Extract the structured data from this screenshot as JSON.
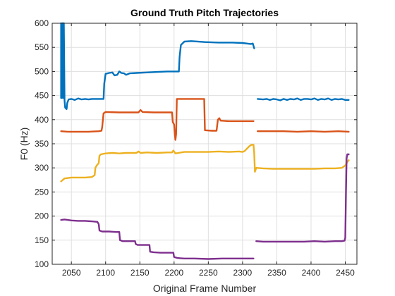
{
  "chart_data": {
    "type": "line",
    "title": "Ground Truth Pitch Trajectories",
    "xlabel": "Original Frame Number",
    "ylabel": "F0 (Hz)",
    "xlim": [
      2022,
      2467
    ],
    "ylim": [
      100,
      600
    ],
    "xticks": [
      2050,
      2100,
      2150,
      2200,
      2250,
      2300,
      2350,
      2400,
      2450
    ],
    "yticks": [
      100,
      150,
      200,
      250,
      300,
      350,
      400,
      450,
      500,
      550,
      600
    ],
    "grid": true,
    "series": [
      {
        "color": "#0072bd",
        "points": [
          [
            2035,
            445
          ],
          [
            2035,
            600
          ],
          [
            2036,
            445
          ],
          [
            2037,
            600
          ],
          [
            2038,
            445
          ],
          [
            2039,
            600
          ],
          [
            2040,
            440
          ],
          [
            2041,
            425
          ],
          [
            2043,
            422
          ],
          [
            2044,
            435
          ],
          [
            2046,
            442
          ],
          [
            2050,
            443
          ],
          [
            2055,
            441
          ],
          [
            2060,
            444
          ],
          [
            2065,
            442
          ],
          [
            2070,
            443
          ],
          [
            2075,
            442
          ],
          [
            2080,
            443
          ],
          [
            2085,
            443
          ],
          [
            2090,
            443
          ],
          [
            2095,
            443
          ],
          [
            2097,
            443
          ],
          [
            2098,
            475
          ],
          [
            2100,
            495
          ],
          [
            2105,
            497
          ],
          [
            2110,
            498
          ],
          [
            2113,
            492
          ],
          [
            2117,
            493
          ],
          [
            2120,
            500
          ],
          [
            2123,
            497
          ],
          [
            2127,
            496
          ],
          [
            2130,
            493
          ],
          [
            2135,
            496
          ],
          [
            2145,
            497
          ],
          [
            2160,
            498
          ],
          [
            2175,
            499
          ],
          [
            2190,
            500
          ],
          [
            2200,
            500
          ],
          [
            2207,
            500
          ],
          [
            2208,
            530
          ],
          [
            2210,
            555
          ],
          [
            2215,
            562
          ],
          [
            2225,
            563
          ],
          [
            2245,
            561
          ],
          [
            2265,
            560
          ],
          [
            2285,
            560
          ],
          [
            2300,
            559
          ],
          [
            2312,
            557
          ],
          [
            2315,
            558
          ],
          [
            2317,
            548
          ],
          null,
          [
            2322,
            443
          ],
          [
            2330,
            442
          ],
          [
            2335,
            443
          ],
          [
            2340,
            441
          ],
          [
            2345,
            443
          ],
          [
            2350,
            442
          ],
          [
            2355,
            440
          ],
          [
            2360,
            443
          ],
          [
            2365,
            441
          ],
          [
            2370,
            443
          ],
          [
            2375,
            442
          ],
          [
            2380,
            444
          ],
          [
            2385,
            441
          ],
          [
            2390,
            443
          ],
          [
            2395,
            443
          ],
          [
            2400,
            442
          ],
          [
            2405,
            444
          ],
          [
            2410,
            441
          ],
          [
            2415,
            443
          ],
          [
            2420,
            442
          ],
          [
            2425,
            444
          ],
          [
            2430,
            441
          ],
          [
            2435,
            443
          ],
          [
            2440,
            442
          ],
          [
            2445,
            443
          ],
          [
            2450,
            441
          ],
          [
            2455,
            441
          ]
        ]
      },
      {
        "color": "#d95319",
        "points": [
          [
            2035,
            376
          ],
          [
            2045,
            375
          ],
          [
            2060,
            375
          ],
          [
            2075,
            375
          ],
          [
            2090,
            376
          ],
          [
            2094,
            377
          ],
          [
            2095,
            385
          ],
          [
            2097,
            413
          ],
          [
            2100,
            416
          ],
          [
            2120,
            415
          ],
          [
            2140,
            415
          ],
          [
            2148,
            415
          ],
          [
            2151,
            420
          ],
          [
            2154,
            416
          ],
          [
            2170,
            415
          ],
          [
            2195,
            415
          ],
          [
            2197,
            415
          ],
          [
            2198,
            395
          ],
          [
            2200,
            390
          ],
          [
            2201,
            370
          ],
          [
            2202,
            358
          ],
          [
            2203,
            370
          ],
          [
            2204,
            443
          ],
          [
            2215,
            443
          ],
          [
            2230,
            443
          ],
          [
            2240,
            443
          ],
          [
            2244,
            443
          ],
          [
            2245,
            378
          ],
          [
            2255,
            377
          ],
          [
            2262,
            377
          ],
          [
            2264,
            400
          ],
          [
            2266,
            403
          ],
          [
            2268,
            398
          ],
          [
            2280,
            397
          ],
          [
            2300,
            397
          ],
          [
            2316,
            397
          ],
          null,
          [
            2322,
            376
          ],
          [
            2340,
            376
          ],
          [
            2360,
            376
          ],
          [
            2380,
            375
          ],
          [
            2400,
            376
          ],
          [
            2420,
            375
          ],
          [
            2440,
            376
          ],
          [
            2455,
            375
          ]
        ]
      },
      {
        "color": "#edb120",
        "points": [
          [
            2035,
            272
          ],
          [
            2040,
            278
          ],
          [
            2050,
            280
          ],
          [
            2060,
            280
          ],
          [
            2070,
            280
          ],
          [
            2080,
            281
          ],
          [
            2084,
            285
          ],
          [
            2085,
            300
          ],
          [
            2087,
            305
          ],
          [
            2090,
            310
          ],
          [
            2091,
            325
          ],
          [
            2093,
            328
          ],
          [
            2100,
            330
          ],
          [
            2110,
            331
          ],
          [
            2120,
            330
          ],
          [
            2130,
            331
          ],
          [
            2145,
            331
          ],
          [
            2148,
            334
          ],
          [
            2151,
            331
          ],
          [
            2160,
            332
          ],
          [
            2175,
            331
          ],
          [
            2190,
            332
          ],
          [
            2197,
            332
          ],
          [
            2199,
            336
          ],
          [
            2202,
            330
          ],
          [
            2215,
            333
          ],
          [
            2230,
            333
          ],
          [
            2250,
            333
          ],
          [
            2265,
            334
          ],
          [
            2280,
            333
          ],
          [
            2295,
            334
          ],
          [
            2300,
            333
          ],
          [
            2303,
            335
          ],
          [
            2310,
            345
          ],
          [
            2313,
            348
          ],
          [
            2316,
            348
          ],
          [
            2317,
            330
          ],
          [
            2318,
            292
          ],
          [
            2320,
            300
          ],
          [
            2330,
            299
          ],
          [
            2345,
            298
          ],
          [
            2360,
            298
          ],
          [
            2375,
            298
          ],
          [
            2390,
            298
          ],
          [
            2405,
            298
          ],
          [
            2420,
            299
          ],
          [
            2435,
            299
          ],
          [
            2445,
            300
          ],
          [
            2450,
            305
          ],
          [
            2453,
            312
          ],
          [
            2455,
            316
          ]
        ]
      },
      {
        "color": "#7e2f8e",
        "points": [
          [
            2035,
            192
          ],
          [
            2040,
            193
          ],
          [
            2050,
            191
          ],
          [
            2060,
            190
          ],
          [
            2070,
            190
          ],
          [
            2080,
            189
          ],
          [
            2088,
            188
          ],
          [
            2090,
            183
          ],
          [
            2091,
            170
          ],
          [
            2095,
            168
          ],
          [
            2105,
            168
          ],
          [
            2115,
            167
          ],
          [
            2120,
            167
          ],
          [
            2121,
            150
          ],
          [
            2125,
            148
          ],
          [
            2135,
            148
          ],
          [
            2143,
            148
          ],
          [
            2144,
            142
          ],
          [
            2147,
            140
          ],
          [
            2155,
            140
          ],
          [
            2164,
            140
          ],
          [
            2165,
            126
          ],
          [
            2170,
            125
          ],
          [
            2180,
            124
          ],
          [
            2190,
            124
          ],
          [
            2199,
            124
          ],
          [
            2200,
            115
          ],
          [
            2205,
            113
          ],
          [
            2215,
            112
          ],
          [
            2230,
            112
          ],
          [
            2250,
            111
          ],
          [
            2270,
            112
          ],
          [
            2290,
            112
          ],
          [
            2305,
            112
          ],
          [
            2316,
            112
          ],
          null,
          [
            2320,
            148
          ],
          [
            2330,
            147
          ],
          [
            2345,
            147
          ],
          [
            2360,
            147
          ],
          [
            2375,
            147
          ],
          [
            2390,
            147
          ],
          [
            2405,
            148
          ],
          [
            2420,
            147
          ],
          [
            2435,
            148
          ],
          [
            2445,
            148
          ],
          [
            2449,
            149
          ],
          [
            2450,
            155
          ],
          [
            2451,
            250
          ],
          [
            2452,
            320
          ],
          [
            2453,
            328
          ],
          [
            2455,
            328
          ]
        ]
      }
    ]
  }
}
